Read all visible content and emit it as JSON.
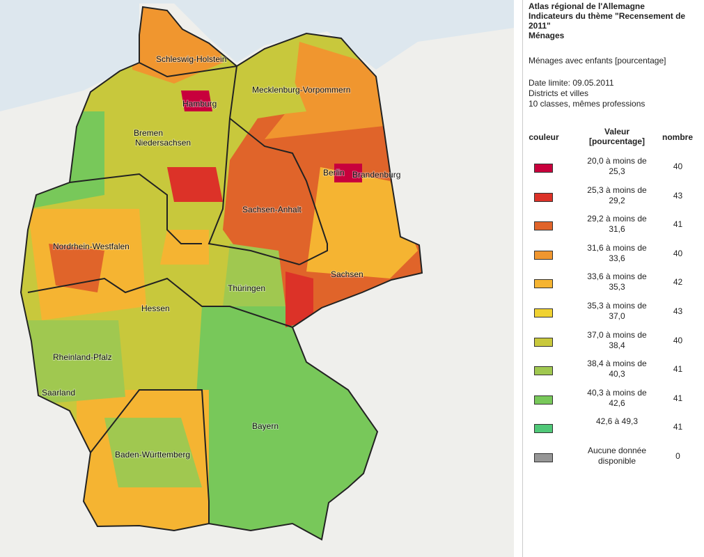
{
  "header": {
    "lines": [
      "Atlas régional de l'Allemagne",
      "Indicateurs du thème \"Recensement de 2011\"",
      "Ménages"
    ]
  },
  "indicator": "Ménages avec enfants [pourcentage]",
  "info": [
    "Date limite: 09.05.2011",
    "Districts et villes",
    "10 classes, mêmes professions"
  ],
  "legend": {
    "columns": [
      "couleur",
      "Valeur [pourcentage]",
      "nombre"
    ],
    "rows": [
      {
        "color": "#c8003c",
        "label": "20,0 à moins de 25,3",
        "count": 40
      },
      {
        "color": "#dc3228",
        "label": "25,3 à moins de 29,2",
        "count": 43
      },
      {
        "color": "#e0642a",
        "label": "29,2 à moins de 31,6",
        "count": 41
      },
      {
        "color": "#f0962f",
        "label": "31,6 à moins de 33,6",
        "count": 40
      },
      {
        "color": "#f5b432",
        "label": "33,6 à moins de 35,3",
        "count": 42
      },
      {
        "color": "#f0d232",
        "label": "35,3 à moins de 37,0",
        "count": 43
      },
      {
        "color": "#c8c83c",
        "label": "37,0 à moins de 38,4",
        "count": 40
      },
      {
        "color": "#a0c850",
        "label": "38,4 à moins de 40,3",
        "count": 41
      },
      {
        "color": "#78c85a",
        "label": "40,3 à moins de 42,6",
        "count": 41
      },
      {
        "color": "#50c878",
        "label": "42,6 à 49,3",
        "count": 41
      },
      {
        "color": "#969696",
        "label": "Aucune donnée disponible",
        "count": 0
      }
    ]
  },
  "map": {
    "labels": [
      "Schleswig-Holstein",
      "Hamburg",
      "Mecklenburg-Vorpommern",
      "Bremen",
      "Niedersachsen",
      "Berlin",
      "Brandenburg",
      "Sachsen-Anhalt",
      "Nordrhein-Westfalen",
      "Sachsen",
      "Thüringen",
      "Hessen",
      "Rheinland-Pfalz",
      "Saarland",
      "Bayern",
      "Baden-Württemberg"
    ]
  }
}
